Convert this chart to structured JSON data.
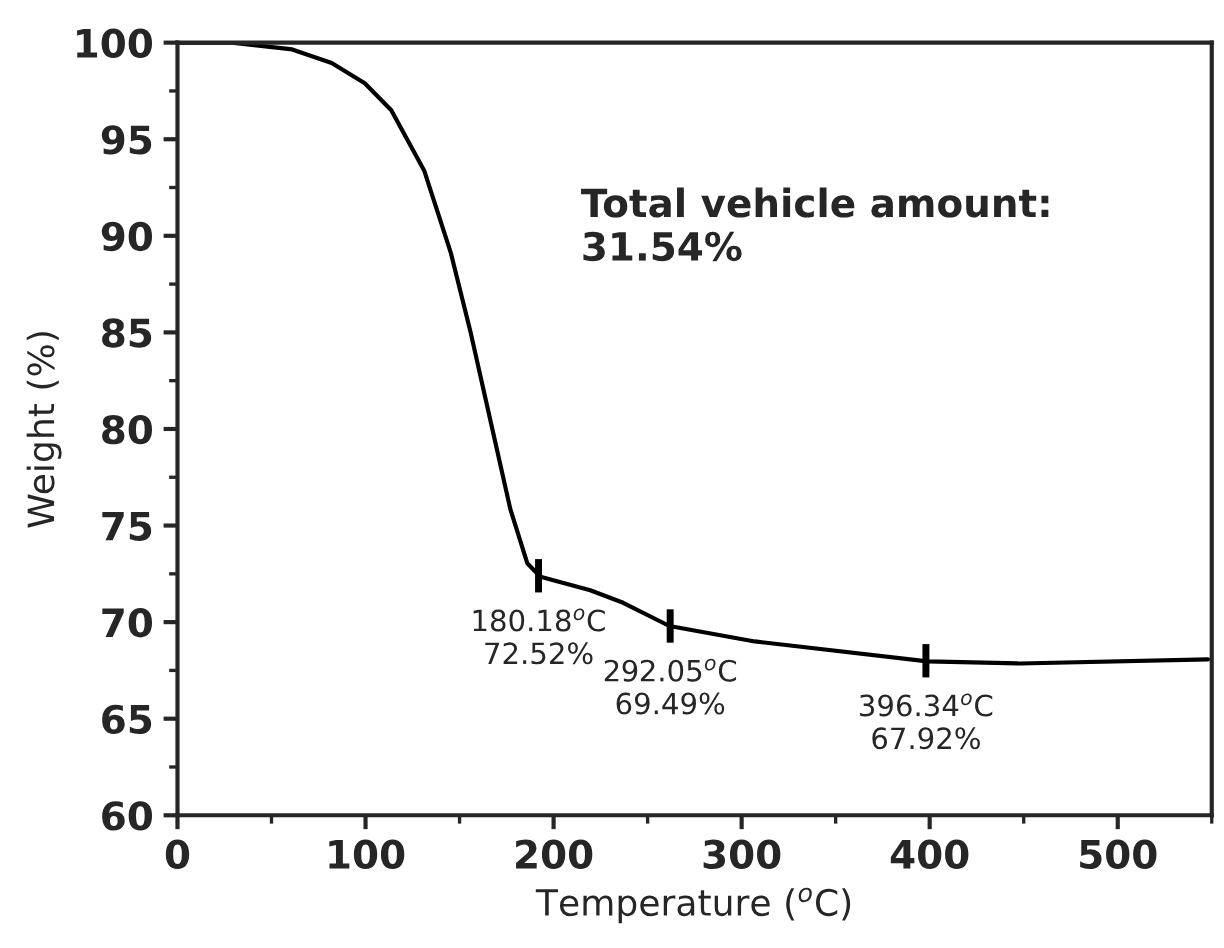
{
  "chart_data": {
    "type": "line",
    "xlabel": "Temperature ($^{o}$C)",
    "ylabel": "Weight (%)",
    "xlim": [
      0,
      550
    ],
    "xticks": [
      0,
      100,
      200,
      300,
      400,
      500
    ],
    "ylim": [
      60,
      100
    ],
    "yticks": [
      60,
      65,
      70,
      75,
      80,
      85,
      90,
      95,
      100
    ],
    "grid": false,
    "marker": "none",
    "line_style": "solid",
    "series": [
      {
        "color": "#000000",
        "x": [
          0,
          29,
          61,
          82,
          99.6,
          113.7,
          131.3,
          145.4,
          156,
          166.5,
          177,
          186,
          193,
          219.5,
          237,
          261.6,
          307,
          398.8,
          448,
          548
        ],
        "values": [
          100,
          100,
          99.65,
          98.95,
          97.9,
          96.5,
          93.35,
          89.1,
          84.95,
          80.4,
          75.85,
          73.05,
          72.35,
          71.65,
          71.0,
          69.8,
          69.0,
          67.97,
          67.86,
          68.07
        ]
      }
    ],
    "annotations": [
      {
        "text": "180.18$^{o}$C\n72.52%",
        "x": 192,
        "y": 72.4
      },
      {
        "text": "292.05$^{o}$C\n69.49%",
        "x": 262,
        "y": 69.8
      },
      {
        "text": "396.34$^{o}$C\n67.92%",
        "x": 398,
        "y": 68.0
      },
      "Total vehicle amount:\n31.54%"
    ]
  }
}
